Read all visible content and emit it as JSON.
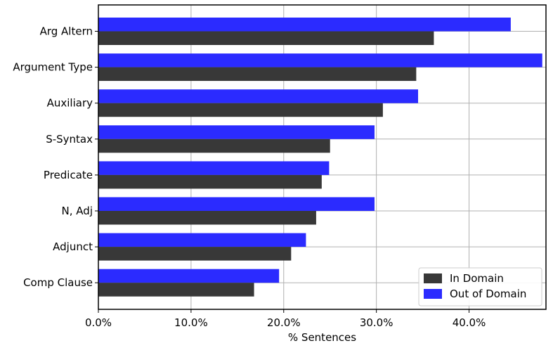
{
  "chart_data": {
    "type": "bar",
    "orientation": "horizontal",
    "categories": [
      "Arg Altern",
      "Argument Type",
      "Auxiliary",
      "S-Syntax",
      "Predicate",
      "N, Adj",
      "Adjunct",
      "Comp Clause"
    ],
    "series": [
      {
        "name": "In Domain",
        "color": "#383838",
        "values": [
          36.2,
          34.3,
          30.7,
          25.0,
          24.1,
          23.5,
          20.8,
          16.8
        ]
      },
      {
        "name": "Out of Domain",
        "color": "#2b2bff",
        "values": [
          44.5,
          47.9,
          34.5,
          29.8,
          24.9,
          29.8,
          22.4,
          19.5
        ]
      }
    ],
    "xlabel": "% Sentences",
    "ylabel": "",
    "xlim": [
      0,
      48.3
    ],
    "x_ticks": [
      0,
      10,
      20,
      30,
      40
    ],
    "x_tick_labels": [
      "0.0%",
      "10.0%",
      "20.0%",
      "30.0%",
      "40.0%"
    ],
    "grid": true,
    "legend_position": "lower-right"
  }
}
